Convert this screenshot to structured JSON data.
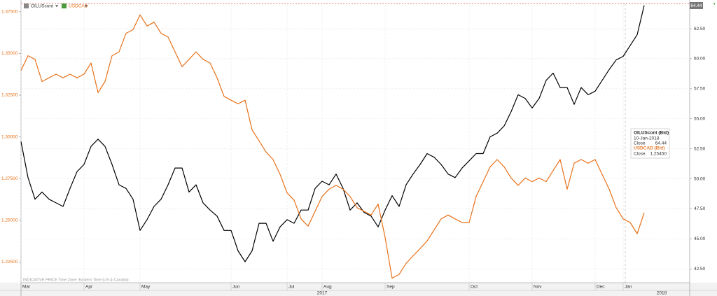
{
  "chart_data": {
    "type": "line",
    "categories": [
      "Mar",
      null,
      null,
      null,
      null,
      null,
      null,
      null,
      null,
      "Apr",
      null,
      null,
      null,
      null,
      null,
      null,
      null,
      "May",
      null,
      null,
      null,
      null,
      null,
      null,
      null,
      null,
      null,
      null,
      null,
      null,
      "Jun",
      null,
      null,
      null,
      null,
      null,
      null,
      null,
      "Jul",
      null,
      null,
      null,
      null,
      "Aug",
      null,
      null,
      null,
      null,
      null,
      null,
      null,
      null,
      "Sep",
      null,
      null,
      null,
      null,
      null,
      null,
      null,
      null,
      null,
      null,
      null,
      "Oct",
      null,
      null,
      null,
      null,
      null,
      null,
      null,
      null,
      "Nov",
      null,
      null,
      null,
      null,
      null,
      null,
      null,
      null,
      "Dec",
      null,
      null,
      null,
      "Jan",
      null,
      null,
      null
    ],
    "year_labels": [
      "2017",
      "2018"
    ],
    "series": [
      {
        "name": "OILUScont",
        "color": "#000000",
        "axis": "y2",
        "values": [
          53.1,
          50.1,
          48.3,
          48.9,
          48.3,
          48.0,
          47.7,
          49.2,
          50.6,
          51.2,
          52.7,
          53.3,
          52.7,
          51.2,
          49.5,
          49.2,
          48.3,
          45.7,
          46.6,
          47.7,
          48.3,
          49.5,
          50.9,
          50.9,
          48.9,
          49.5,
          48.0,
          47.4,
          46.9,
          45.7,
          45.7,
          44.0,
          43.1,
          44.0,
          46.3,
          46.3,
          44.8,
          46.0,
          46.6,
          46.3,
          47.4,
          47.4,
          49.2,
          49.8,
          49.5,
          50.4,
          49.2,
          47.4,
          48.0,
          47.2,
          46.9,
          46.0,
          47.4,
          48.6,
          47.7,
          49.5,
          50.4,
          51.2,
          52.1,
          51.8,
          51.2,
          50.4,
          50.1,
          50.9,
          51.5,
          52.1,
          52.1,
          53.5,
          53.8,
          54.4,
          55.6,
          57.0,
          56.7,
          55.9,
          56.7,
          58.2,
          58.8,
          57.6,
          57.6,
          56.2,
          57.6,
          57.0,
          57.3,
          58.2,
          59.1,
          59.9,
          60.2,
          61.1,
          62.0,
          64.44
        ]
      },
      {
        "name": "USDCAD",
        "color": "#e8711a",
        "values": [
          1.3398,
          1.3487,
          1.3465,
          1.3332,
          1.3354,
          1.3376,
          1.3354,
          1.3376,
          1.3354,
          1.3376,
          1.3443,
          1.3265,
          1.3332,
          1.3487,
          1.351,
          1.3621,
          1.3643,
          1.3732,
          1.3665,
          1.3688,
          1.3621,
          1.3599,
          1.351,
          1.3421,
          1.3465,
          1.351,
          1.3465,
          1.3443,
          1.3354,
          1.3243,
          1.322,
          1.3198,
          1.322,
          1.3042,
          1.2976,
          1.2909,
          1.2864,
          1.2775,
          1.2664,
          1.262,
          1.2508,
          1.2464,
          1.2553,
          1.2642,
          1.2686,
          1.2709,
          1.2686,
          1.2642,
          1.2575,
          1.2553,
          1.2531,
          1.2597,
          1.2397,
          1.2152,
          1.2175,
          1.2241,
          1.2286,
          1.233,
          1.2375,
          1.2442,
          1.2508,
          1.2531,
          1.2508,
          1.2486,
          1.2486,
          1.2642,
          1.2731,
          1.282,
          1.2864,
          1.282,
          1.2753,
          1.2709,
          1.2753,
          1.2731,
          1.2753,
          1.2731,
          1.2798,
          1.2864,
          1.2686,
          1.2842,
          1.2864,
          1.2842,
          1.2864,
          1.2775,
          1.2686,
          1.2575,
          1.2508,
          1.2486,
          1.2419,
          1.2545
        ]
      }
    ],
    "ylim": [
      1.2125,
      1.38
    ],
    "yticks": [
      {
        "value": 1.225,
        "label": "1.22500"
      },
      {
        "value": 1.25,
        "label": "1.25000"
      },
      {
        "value": 1.275,
        "label": "1.27500"
      },
      {
        "value": 1.3,
        "label": "1.30000"
      },
      {
        "value": 1.325,
        "label": "1.32500"
      },
      {
        "value": 1.35,
        "label": "1.35000"
      },
      {
        "value": 1.375,
        "label": "1.37500"
      }
    ],
    "y2lim": [
      41.35,
      64.6
    ],
    "y2ticks": [
      {
        "value": 42.5,
        "label": "42.50"
      },
      {
        "value": 45,
        "label": "45.00"
      },
      {
        "value": 47.5,
        "label": "47.50"
      },
      {
        "value": 50,
        "label": "50.00"
      },
      {
        "value": 52.5,
        "label": "52.50"
      },
      {
        "value": 55,
        "label": "55.00"
      },
      {
        "value": 57.5,
        "label": "57.50"
      },
      {
        "value": 60,
        "label": "60.00"
      },
      {
        "value": 62.5,
        "label": "62.50"
      }
    ],
    "grid": true,
    "last_value": "64.44",
    "tooltip": {
      "title": "OILUScont (Bid)",
      "date": "10-Jan-2018",
      "close_label": "Close",
      "close_value": "64.44",
      "title2": "USDCAD (Bid)",
      "close2_label": "Close",
      "close2_value": "1.25450"
    },
    "footer_note": "INDICATIVE PRICE   Time Zone: Eastern Time (US & Canada)"
  }
}
